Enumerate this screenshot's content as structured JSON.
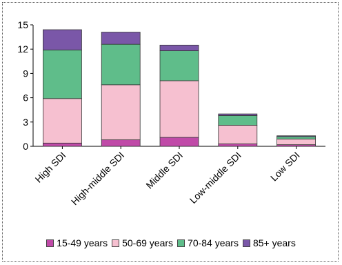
{
  "chart_data": {
    "type": "bar",
    "stacked": true,
    "categories": [
      "High SDI",
      "High-middle SDI",
      "Middle SDI",
      "Low-middle SDI",
      "Low SDI"
    ],
    "series": [
      {
        "name": "15-49 years",
        "color": "#c04aa8",
        "values": [
          0.4,
          0.8,
          1.1,
          0.3,
          0.2
        ]
      },
      {
        "name": "50-69 years",
        "color": "#f6c0d0",
        "values": [
          5.5,
          6.8,
          7.0,
          2.3,
          0.7
        ]
      },
      {
        "name": "70-84 years",
        "color": "#5fbd8a",
        "values": [
          6.0,
          5.0,
          3.7,
          1.2,
          0.3
        ]
      },
      {
        "name": "85+ years",
        "color": "#7a57a8",
        "values": [
          2.5,
          1.5,
          0.7,
          0.2,
          0.1
        ]
      }
    ],
    "yticks": [
      "0",
      "3",
      "6",
      "9",
      "12",
      "15"
    ],
    "ylim": [
      0,
      15
    ],
    "grid": false,
    "legend_position": "bottom"
  }
}
